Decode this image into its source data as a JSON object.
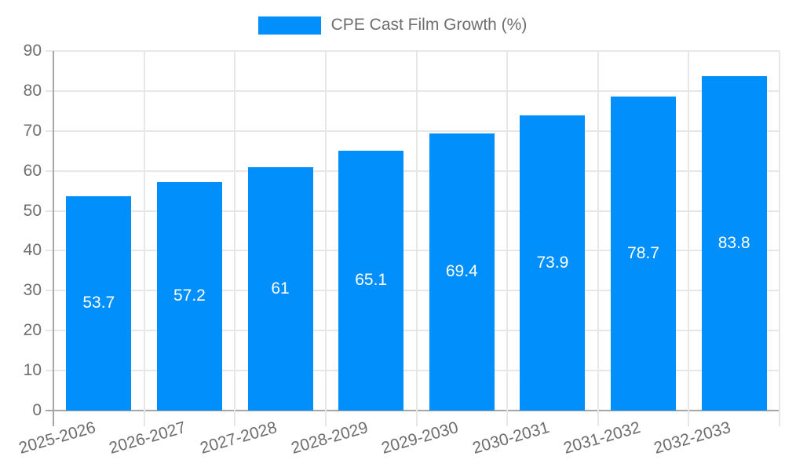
{
  "chart_data": {
    "type": "bar",
    "title": "",
    "legend": "CPE Cast Film Growth (%)",
    "legend_position": "top",
    "categories": [
      "2025-2026",
      "2026-2027",
      "2027-2028",
      "2028-2029",
      "2029-2030",
      "2030-2031",
      "2031-2032",
      "2032-2033"
    ],
    "series": [
      {
        "name": "CPE Cast Film Growth (%)",
        "values": [
          53.7,
          57.2,
          61,
          65.1,
          69.4,
          73.9,
          78.7,
          83.8
        ]
      }
    ],
    "value_labels": [
      "53.7",
      "57.2",
      "61",
      "65.1",
      "69.4",
      "73.9",
      "78.7",
      "83.8"
    ],
    "xlabel": "",
    "ylabel": "",
    "ylim": [
      0,
      90
    ],
    "yticks": [
      0,
      10,
      20,
      30,
      40,
      50,
      60,
      70,
      80,
      90
    ],
    "grid": true,
    "bar_color": "#008ffb",
    "grid_color": "#e7e7e7",
    "axis_color": "#a6a6a6",
    "tick_label_color": "#6e6e6e",
    "value_label_color": "#ffffff",
    "background_color": "#ffffff"
  }
}
